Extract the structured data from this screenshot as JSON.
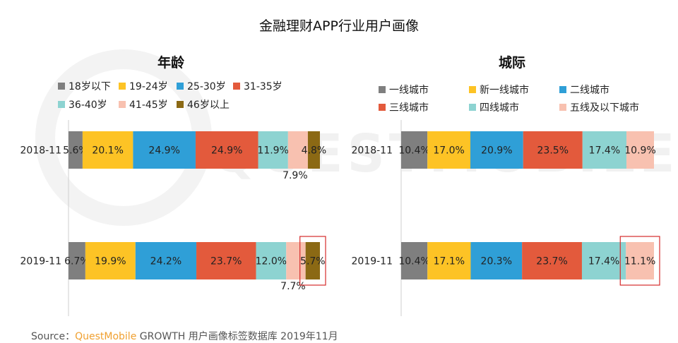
{
  "title": "金融理财APP行业用户画像",
  "source": {
    "prefix": "Source：",
    "brand": "QuestMobile",
    "rest": " GROWTH 用户画像标签数据库  2019年11月"
  },
  "chart_data": [
    {
      "type": "bar",
      "stacked": true,
      "orientation": "horizontal",
      "title": "年龄",
      "categories": [
        "2018-11",
        "2019-11"
      ],
      "series": [
        {
          "name": "18岁以下",
          "color": "#7f7f7f",
          "values": [
            5.6,
            6.7
          ]
        },
        {
          "name": "19-24岁",
          "color": "#fdc325",
          "values": [
            20.1,
            19.9
          ]
        },
        {
          "name": "25-30岁",
          "color": "#2f9fd7",
          "values": [
            24.9,
            24.2
          ]
        },
        {
          "name": "31-35岁",
          "color": "#e35a3c",
          "values": [
            24.9,
            23.7
          ]
        },
        {
          "name": "36-40岁",
          "color": "#8dd3d1",
          "values": [
            11.9,
            12.0
          ]
        },
        {
          "name": "41-45岁",
          "color": "#f8c1b0",
          "values": [
            7.9,
            7.7
          ]
        },
        {
          "name": "46岁以上",
          "color": "#8b6914",
          "values": [
            4.8,
            5.7
          ]
        }
      ],
      "value_labels": [
        [
          "5.6%",
          "20.1%",
          "24.9%",
          "24.9%",
          "11.9%",
          "7.9%",
          "4.8%"
        ],
        [
          "6.7%",
          "19.9%",
          "24.2%",
          "23.7%",
          "12.0%",
          "7.7%",
          "5.7%"
        ]
      ],
      "highlight": {
        "row": 1,
        "series": 6
      }
    },
    {
      "type": "bar",
      "stacked": true,
      "orientation": "horizontal",
      "title": "城际",
      "categories": [
        "2018-11",
        "2019-11"
      ],
      "series": [
        {
          "name": "一线城市",
          "color": "#7f7f7f",
          "values": [
            10.4,
            10.4
          ]
        },
        {
          "name": "新一线城市",
          "color": "#fdc325",
          "values": [
            17.0,
            17.1
          ]
        },
        {
          "name": "二线城市",
          "color": "#2f9fd7",
          "values": [
            20.9,
            20.3
          ]
        },
        {
          "name": "三线城市",
          "color": "#e35a3c",
          "values": [
            23.5,
            23.7
          ]
        },
        {
          "name": "四线城市",
          "color": "#8dd3d1",
          "values": [
            17.4,
            17.4
          ]
        },
        {
          "name": "五线及以下城市",
          "color": "#f8c1b0",
          "values": [
            10.9,
            11.1
          ]
        }
      ],
      "value_labels": [
        [
          "10.4%",
          "17.0%",
          "20.9%",
          "23.5%",
          "17.4%",
          "10.9%"
        ],
        [
          "10.4%",
          "17.1%",
          "20.3%",
          "23.7%",
          "17.4%",
          "11.1%"
        ]
      ],
      "highlight": {
        "row": 1,
        "series": 5
      }
    }
  ]
}
